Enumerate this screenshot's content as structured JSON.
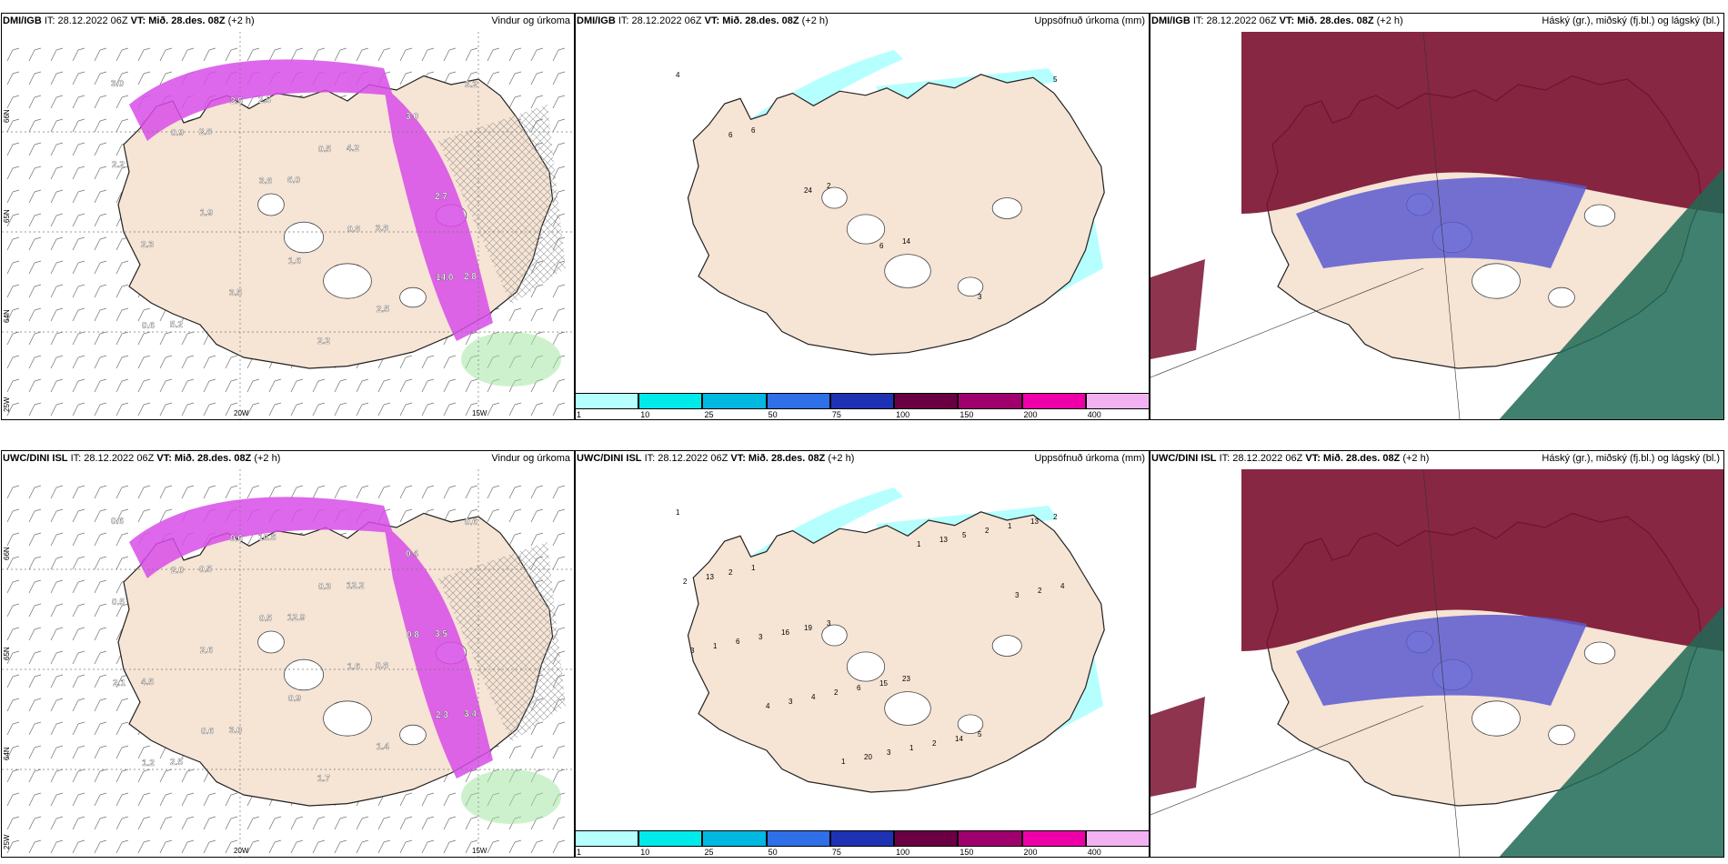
{
  "panels": [
    {
      "source": "DMI/IGB",
      "init": "IT: 28.12.2022 06Z",
      "valid_label": "VT:",
      "valid": "Mið. 28.des. 08Z",
      "lead": "(+2 h)",
      "title": "Vindur og úrkoma",
      "labels": [
        "3.0",
        "2.8",
        "6.0",
        "3.8",
        "2.8",
        "5.2",
        "2.5",
        "4.2",
        "2.7",
        "2.3",
        "3.5",
        "2.2",
        "3.0",
        "2.2",
        "1.9",
        "1.6",
        "2.5",
        "3.2",
        "0.9",
        "3.8",
        "0.8",
        "14.0",
        "0.6",
        "2.5",
        "0.5"
      ],
      "lat_labels": [
        "66N",
        "65N",
        "64N"
      ],
      "lon_labels": [
        "20W",
        "15W"
      ],
      "corner": "25W"
    },
    {
      "source": "DMI/IGB",
      "init": "IT: 28.12.2022 06Z",
      "valid_label": "VT:",
      "valid": "Mið. 28.des. 08Z",
      "lead": "(+2 h)",
      "title": "Uppsöfnuð úrkoma (mm)",
      "labels": [
        "4",
        "6",
        "2",
        "14",
        "3",
        "5",
        "6",
        "24",
        "6"
      ]
    },
    {
      "source": "DMI/IGB",
      "init": "IT: 28.12.2022 06Z",
      "valid_label": "VT:",
      "valid": "Mið. 28.des. 08Z",
      "lead": "(+2 h)",
      "title": "Háský (gr.), miðský (fj.bl.) og lágský (bl.)"
    },
    {
      "source": "UWC/DINI ISL",
      "init": "IT: 28.12.2022 06Z",
      "valid_label": "VT:",
      "valid": "Mið. 28.des. 08Z",
      "lead": "(+2 h)",
      "title": "Vindur og úrkoma",
      "labels": [
        "0.6",
        "0.5",
        "12.9",
        "0.8",
        "3.4",
        "2.5",
        "10.6",
        "12.2",
        "3.5",
        "4.5",
        "3.0",
        "1.7",
        "0.4",
        "0.5",
        "2.6",
        "0.9",
        "1.4",
        "0.6",
        "2.0",
        "0.5",
        "1.6",
        "2.3",
        "1.2",
        "0.6",
        "0.3",
        "0.8",
        "2.1",
        "0.6"
      ],
      "lat_labels": [
        "66N",
        "65N",
        "64N"
      ],
      "lon_labels": [
        "20W",
        "15W"
      ],
      "corner": "25W"
    },
    {
      "source": "UWC/DINI ISL",
      "init": "IT: 28.12.2022 06Z",
      "valid_label": "VT:",
      "valid": "Mið. 28.des. 08Z",
      "lead": "(+2 h)",
      "title": "Uppsöfnuð úrkoma (mm)",
      "labels": [
        "1",
        "1",
        "3",
        "23",
        "5",
        "2",
        "2",
        "19",
        "15",
        "14",
        "13",
        "13",
        "16",
        "6",
        "2",
        "1",
        "2",
        "3",
        "2",
        "1",
        "2",
        "4",
        "6",
        "4",
        "3",
        "5",
        "2",
        "1",
        "3",
        "20",
        "13",
        "3",
        "3",
        "4",
        "1",
        "1"
      ]
    },
    {
      "source": "UWC/DINI ISL",
      "init": "IT: 28.12.2022 06Z",
      "valid_label": "VT:",
      "valid": "Mið. 28.des. 08Z",
      "lead": "(+2 h)",
      "title": "Háský (gr.), miðský (fj.bl.) og lágský (bl.)"
    }
  ],
  "colorbar": {
    "ticks": [
      "1",
      "10",
      "25",
      "50",
      "75",
      "100",
      "150",
      "200",
      "400"
    ],
    "colors": [
      "#b6ffff",
      "#00eaea",
      "#00b8e0",
      "#2f6fe8",
      "#1d33b4",
      "#6a0042",
      "#a0006e",
      "#ee00a8",
      "#f2b2f2"
    ]
  },
  "colors": {
    "land": "#f6e4d4",
    "sea": "#ffffff",
    "precip": "#d84de8",
    "high": "#7a1030",
    "mid": "#5a5ad0",
    "low": "#1f6a55"
  }
}
